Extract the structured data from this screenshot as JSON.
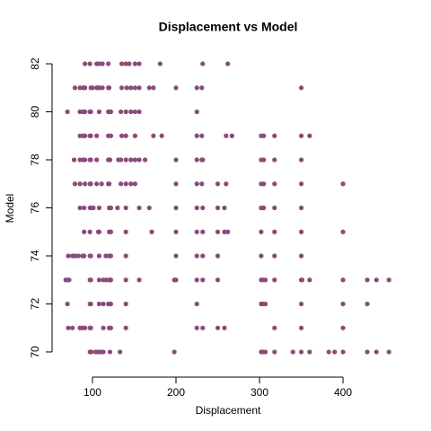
{
  "chart_data": {
    "type": "scatter",
    "title": "Displacement vs Model",
    "x_label": "Displacement",
    "y_label": "Model",
    "color": "#8b4a7a",
    "x": [
      91,
      97,
      105,
      108,
      112,
      119,
      135,
      140,
      144,
      151,
      156,
      181,
      232,
      262,
      79,
      85,
      89,
      91,
      98,
      100,
      105,
      107,
      108,
      112,
      119,
      120,
      135,
      141,
      146,
      151,
      156,
      168,
      173,
      200,
      225,
      231,
      350,
      70,
      85,
      89,
      90,
      91,
      97,
      98,
      108,
      119,
      120,
      122,
      134,
      140,
      146,
      151,
      156,
      225,
      85,
      89,
      91,
      97,
      98,
      105,
      119,
      122,
      135,
      140,
      151,
      173,
      183,
      225,
      231,
      260,
      267,
      302,
      305,
      318,
      350,
      360,
      78,
      85,
      89,
      91,
      97,
      98,
      105,
      119,
      121,
      131,
      134,
      140,
      146,
      151,
      156,
      163,
      200,
      225,
      231,
      232,
      302,
      305,
      318,
      350,
      79,
      85,
      91,
      97,
      98,
      105,
      111,
      119,
      120,
      134,
      140,
      146,
      151,
      200,
      225,
      231,
      250,
      260,
      302,
      305,
      318,
      350,
      400,
      85,
      90,
      97,
      98,
      101,
      108,
      120,
      122,
      130,
      140,
      156,
      168,
      200,
      225,
      232,
      250,
      258,
      302,
      305,
      318,
      350,
      90,
      97,
      107,
      108,
      120,
      122,
      140,
      171,
      200,
      225,
      232,
      250,
      258,
      262,
      302,
      318,
      350,
      400,
      71,
      76,
      79,
      83,
      88,
      90,
      97,
      98,
      108,
      116,
      120,
      122,
      140,
      200,
      225,
      232,
      250,
      302,
      318,
      350,
      68,
      70,
      72,
      97,
      98,
      108,
      113,
      116,
      120,
      121,
      122,
      140,
      156,
      198,
      200,
      225,
      232,
      250,
      302,
      304,
      307,
      318,
      350,
      351,
      360,
      400,
      429,
      440,
      455,
      70,
      97,
      98,
      108,
      113,
      119,
      121,
      122,
      140,
      225,
      302,
      304,
      307,
      350,
      400,
      429,
      71,
      76,
      85,
      88,
      91,
      97,
      98,
      113,
      120,
      122,
      140,
      225,
      232,
      250,
      258,
      318,
      350,
      400,
      97,
      99,
      104,
      107,
      110,
      113,
      121,
      133,
      198,
      302,
      304,
      307,
      318,
      340,
      350,
      360,
      383,
      390,
      400,
      429,
      440,
      455
    ],
    "values": [
      82,
      82,
      82,
      82,
      82,
      82,
      82,
      82,
      82,
      82,
      82,
      82,
      82,
      82,
      81,
      81,
      81,
      81,
      81,
      81,
      81,
      81,
      81,
      81,
      81,
      81,
      81,
      81,
      81,
      81,
      81,
      81,
      81,
      81,
      81,
      81,
      81,
      80,
      80,
      80,
      80,
      80,
      80,
      80,
      80,
      80,
      80,
      80,
      80,
      80,
      80,
      80,
      80,
      80,
      79,
      79,
      79,
      79,
      79,
      79,
      79,
      79,
      79,
      79,
      79,
      79,
      79,
      79,
      79,
      79,
      79,
      79,
      79,
      79,
      79,
      79,
      78,
      78,
      78,
      78,
      78,
      78,
      78,
      78,
      78,
      78,
      78,
      78,
      78,
      78,
      78,
      78,
      78,
      78,
      78,
      78,
      78,
      78,
      78,
      78,
      77,
      77,
      77,
      77,
      77,
      77,
      77,
      77,
      77,
      77,
      77,
      77,
      77,
      77,
      77,
      77,
      77,
      77,
      77,
      77,
      77,
      77,
      77,
      76,
      76,
      76,
      76,
      76,
      76,
      76,
      76,
      76,
      76,
      76,
      76,
      76,
      76,
      76,
      76,
      76,
      76,
      76,
      76,
      76,
      75,
      75,
      75,
      75,
      75,
      75,
      75,
      75,
      75,
      75,
      75,
      75,
      75,
      75,
      75,
      75,
      75,
      75,
      74,
      74,
      74,
      74,
      74,
      74,
      74,
      74,
      74,
      74,
      74,
      74,
      74,
      74,
      74,
      74,
      74,
      74,
      74,
      74,
      73,
      73,
      73,
      73,
      73,
      73,
      73,
      73,
      73,
      73,
      73,
      73,
      73,
      73,
      73,
      73,
      73,
      73,
      73,
      73,
      73,
      73,
      73,
      73,
      73,
      73,
      73,
      73,
      73,
      72,
      72,
      72,
      72,
      72,
      72,
      72,
      72,
      72,
      72,
      72,
      72,
      72,
      72,
      72,
      72,
      71,
      71,
      71,
      71,
      71,
      71,
      71,
      71,
      71,
      71,
      71,
      71,
      71,
      71,
      71,
      71,
      71,
      71,
      70,
      70,
      70,
      70,
      70,
      70,
      70,
      70,
      70,
      70,
      70,
      70,
      70,
      70,
      70,
      70,
      70,
      70,
      70,
      70,
      70,
      70
    ],
    "xlim": [
      52.5,
      470.5
    ],
    "ylim": [
      69.52,
      82.48
    ],
    "xticks": [
      100,
      200,
      300,
      400
    ],
    "yticks": [
      70,
      72,
      74,
      76,
      78,
      80,
      82
    ]
  }
}
